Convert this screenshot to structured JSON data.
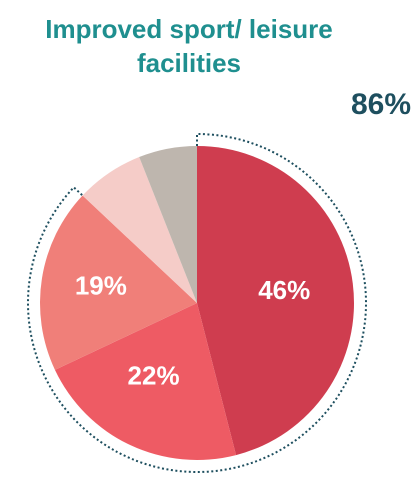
{
  "chart_data": {
    "type": "pie",
    "title": [
      "Improved sport/ leisure",
      "facilities"
    ],
    "highlight_total": "86%",
    "slices": [
      {
        "label": "46%",
        "value": 46,
        "color": "#cf3d4f"
      },
      {
        "label": "22%",
        "value": 22,
        "color": "#ee5b64"
      },
      {
        "label": "19%",
        "value": 19,
        "color": "#f07f79"
      },
      {
        "label": "",
        "value": 7,
        "color": "#f5ccc8"
      },
      {
        "label": "",
        "value": 6,
        "color": "#beb6ae"
      }
    ],
    "start_angle_deg": 0,
    "direction": "clockwise"
  }
}
